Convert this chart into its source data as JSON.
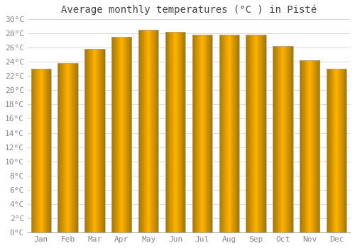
{
  "title": "Average monthly temperatures (°C ) in Pisté",
  "months": [
    "Jan",
    "Feb",
    "Mar",
    "Apr",
    "May",
    "Jun",
    "Jul",
    "Aug",
    "Sep",
    "Oct",
    "Nov",
    "Dec"
  ],
  "values": [
    23,
    23.8,
    25.8,
    27.5,
    28.5,
    28.2,
    27.8,
    27.8,
    27.8,
    26.2,
    24.2,
    23
  ],
  "bar_color_face": "#FFC020",
  "bar_color_edge": "#CC8800",
  "background_color": "#FFFFFF",
  "plot_bg_color": "#FFFFFF",
  "grid_color": "#DDDDDD",
  "ylim": [
    0,
    30
  ],
  "ytick_step": 2,
  "title_fontsize": 10,
  "tick_fontsize": 8,
  "bar_width": 0.75
}
